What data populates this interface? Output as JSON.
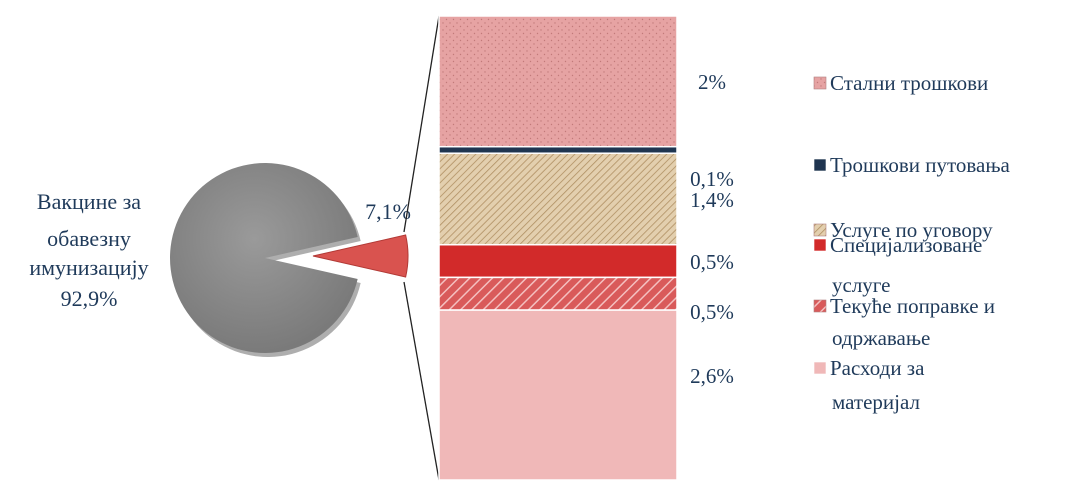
{
  "chart_data": {
    "type": "bar-of-pie",
    "pie": {
      "slices": [
        {
          "label_lines": [
            "Вакцине за",
            "обавезну",
            "имунизацију",
            "92,9%"
          ],
          "value": 92.9,
          "color": "#8c8c8c"
        },
        {
          "label_lines": [
            "7,1%"
          ],
          "value": 7.1,
          "color": "#d9534f"
        }
      ]
    },
    "bar": {
      "categories": [
        {
          "legend_lines": [
            "Стални трошкови"
          ],
          "value": 2.0,
          "value_label": "2%",
          "color": "#e8a0a0",
          "pattern": "dots"
        },
        {
          "legend_lines": [
            "Трошкови путовања"
          ],
          "value": 0.1,
          "value_label": "0,1%",
          "color": "#1f3550",
          "pattern": "none"
        },
        {
          "legend_lines": [
            "Услуге по уговору"
          ],
          "value": 1.4,
          "value_label": "1,4%",
          "color": "#d9c09c",
          "pattern": "diagonal"
        },
        {
          "legend_lines": [
            "Специјализоване",
            "услуге"
          ],
          "value": 0.5,
          "value_label": "0,5%",
          "color": "#d22a2a",
          "pattern": "none"
        },
        {
          "legend_lines": [
            "Текуће поправке и",
            "одржавање"
          ],
          "value": 0.5,
          "value_label": "0,5%",
          "color": "#e07070",
          "pattern": "diagonal-white"
        },
        {
          "legend_lines": [
            "Расходи за",
            "материјал"
          ],
          "value": 2.6,
          "value_label": "2,6%",
          "color": "#f0b8b8",
          "pattern": "none"
        }
      ]
    },
    "legend_position": "right"
  }
}
